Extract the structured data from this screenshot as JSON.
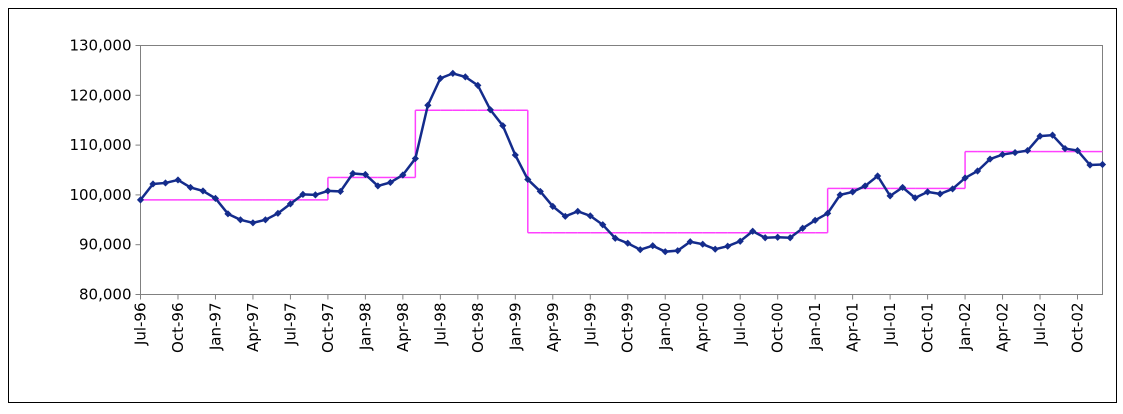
{
  "chart_data": {
    "type": "line",
    "categories": [
      "Jul-96",
      null,
      null,
      "Oct-96",
      null,
      null,
      "Jan-97",
      null,
      null,
      "Apr-97",
      null,
      null,
      "Jul-97",
      null,
      null,
      "Oct-97",
      null,
      null,
      "Jan-98",
      null,
      null,
      "Apr-98",
      null,
      null,
      "Jul-98",
      null,
      null,
      "Oct-98",
      null,
      null,
      "Jan-99",
      null,
      null,
      "Apr-99",
      null,
      null,
      "Jul-99",
      null,
      null,
      "Oct-99",
      null,
      null,
      "Jan-00",
      null,
      null,
      "Apr-00",
      null,
      null,
      "Jul-00",
      null,
      null,
      "Oct-00",
      null,
      null,
      "Jan-01",
      null,
      null,
      "Apr-01",
      null,
      null,
      "Jul-01",
      null,
      null,
      "Oct-01",
      null,
      null,
      "Jan-02",
      null,
      null,
      "Apr-02",
      null,
      null,
      "Jul-02",
      null,
      null,
      "Oct-02",
      null,
      null
    ],
    "series": [
      {
        "color": "#142c8c",
        "values": [
          99000,
          102200,
          102400,
          103000,
          101500,
          100800,
          99300,
          96200,
          95000,
          94400,
          95000,
          96300,
          98200,
          100100,
          100000,
          100800,
          100700,
          104300,
          104100,
          101800,
          102500,
          104000,
          107300,
          118000,
          123400,
          124400,
          123700,
          122000,
          117100,
          113900,
          108000,
          103100,
          100700,
          97700,
          95700,
          96700,
          95800,
          94000,
          91300,
          90300,
          89000,
          89800,
          88600,
          88800,
          90600,
          90100,
          89100,
          89700,
          90700,
          92700,
          91400,
          91500,
          91400,
          93300,
          94900,
          96300,
          100000,
          100600,
          101800,
          103800,
          99800,
          101500,
          99400,
          100600,
          100200,
          101200,
          103400,
          104800,
          107200,
          108100,
          108500,
          108900,
          111800,
          112000,
          109300,
          108900,
          106000,
          106100
        ]
      },
      {
        "color": "#ff40ff",
        "step": "post",
        "values": [
          99000,
          99000,
          99000,
          99000,
          99000,
          99000,
          99000,
          99000,
          99000,
          99000,
          99000,
          99000,
          99000,
          99000,
          99000,
          103500,
          103500,
          103500,
          103500,
          103500,
          103500,
          103500,
          117000,
          117000,
          117000,
          117000,
          117000,
          117000,
          117000,
          117000,
          117000,
          92400,
          92400,
          92400,
          92400,
          92400,
          92400,
          92400,
          92400,
          92400,
          92400,
          92400,
          92400,
          92400,
          92400,
          92400,
          92400,
          92400,
          92400,
          92400,
          92400,
          92400,
          92400,
          92400,
          92400,
          101300,
          101300,
          101300,
          101300,
          101300,
          101300,
          101300,
          101300,
          101300,
          101300,
          101300,
          108700,
          108700,
          108700,
          108700,
          108700,
          108700,
          108700,
          108700,
          108700,
          108700,
          108700,
          108700
        ]
      }
    ],
    "ylim": [
      80000,
      130000
    ],
    "yticks": [
      {
        "value": 80000,
        "label": "80,000"
      },
      {
        "value": 90000,
        "label": "90,000"
      },
      {
        "value": 100000,
        "label": "100,000"
      },
      {
        "value": 110000,
        "label": "110,000"
      },
      {
        "value": 120000,
        "label": "120,000"
      },
      {
        "value": 130000,
        "label": "130,000"
      }
    ],
    "grid": false
  }
}
